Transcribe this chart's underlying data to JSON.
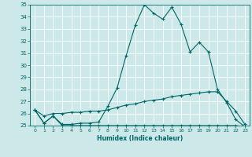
{
  "xlabel": "Humidex (Indice chaleur)",
  "x": [
    0,
    1,
    2,
    3,
    4,
    5,
    6,
    7,
    8,
    9,
    10,
    11,
    12,
    13,
    14,
    15,
    16,
    17,
    18,
    19,
    20,
    21,
    22,
    23
  ],
  "line1": [
    26.3,
    25.2,
    25.8,
    25.1,
    25.1,
    25.2,
    25.2,
    25.3,
    26.6,
    28.1,
    30.8,
    33.3,
    35.0,
    34.3,
    33.8,
    34.8,
    33.4,
    31.1,
    31.9,
    31.1,
    28.0,
    26.9,
    25.5,
    24.9
  ],
  "line3": [
    26.3,
    25.2,
    25.8,
    25.0,
    25.0,
    25.0,
    25.0,
    25.0,
    25.0,
    25.0,
    25.0,
    25.0,
    25.0,
    25.0,
    25.0,
    25.0,
    25.0,
    25.0,
    25.0,
    25.0,
    25.0,
    25.0,
    25.0,
    24.9
  ],
  "line4": [
    26.3,
    25.8,
    26.0,
    26.0,
    26.1,
    26.1,
    26.2,
    26.2,
    26.3,
    26.5,
    26.7,
    26.8,
    27.0,
    27.1,
    27.2,
    27.4,
    27.5,
    27.6,
    27.7,
    27.8,
    27.8,
    27.0,
    26.2,
    25.1
  ],
  "ylim": [
    25,
    35
  ],
  "xlim": [
    -0.5,
    23.5
  ],
  "yticks": [
    25,
    26,
    27,
    28,
    29,
    30,
    31,
    32,
    33,
    34,
    35
  ],
  "xticks": [
    0,
    1,
    2,
    3,
    4,
    5,
    6,
    7,
    8,
    9,
    10,
    11,
    12,
    13,
    14,
    15,
    16,
    17,
    18,
    19,
    20,
    21,
    22,
    23
  ],
  "bg_color": "#cce8e8",
  "grid_color": "#ffffff",
  "line_color": "#006666",
  "marker": "+"
}
